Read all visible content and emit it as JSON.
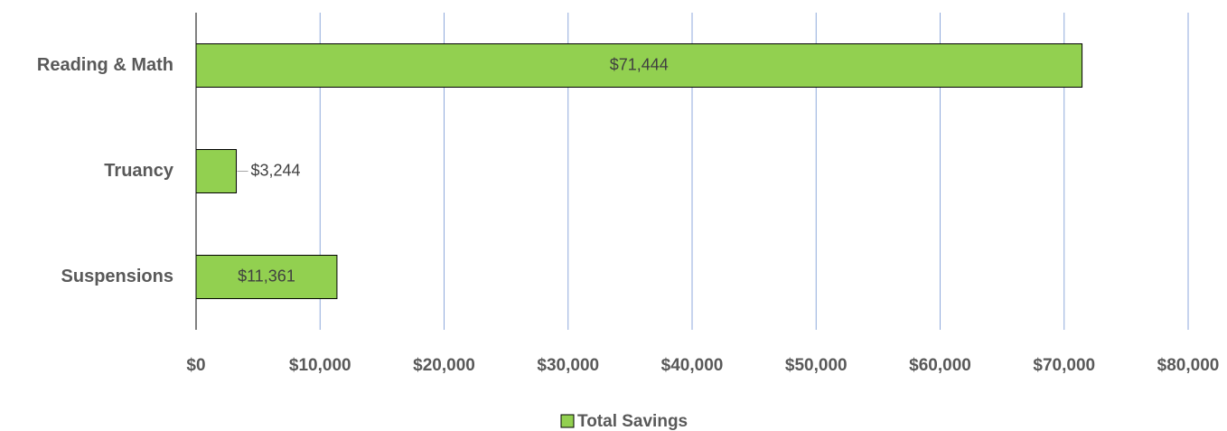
{
  "chart_data": {
    "type": "hbar",
    "categories": [
      "Reading & Math",
      "Truancy",
      "Suspensions"
    ],
    "series": [
      {
        "name": "Total Savings",
        "color": "#92d050",
        "values": [
          71444,
          3244,
          11361
        ],
        "value_labels": [
          "$71,444",
          "$3,244",
          "$11,361"
        ]
      }
    ],
    "xlim": [
      0,
      80000
    ],
    "xticks": [
      {
        "value": 0,
        "label": "$0"
      },
      {
        "value": 10000,
        "label": "$10,000"
      },
      {
        "value": 20000,
        "label": "$20,000"
      },
      {
        "value": 30000,
        "label": "$30,000"
      },
      {
        "value": 40000,
        "label": "$40,000"
      },
      {
        "value": 50000,
        "label": "$50,000"
      },
      {
        "value": 60000,
        "label": "$60,000"
      },
      {
        "value": 70000,
        "label": "$70,000"
      },
      {
        "value": 80000,
        "label": "$80,000"
      }
    ],
    "grid": true,
    "legend": "bottom"
  }
}
